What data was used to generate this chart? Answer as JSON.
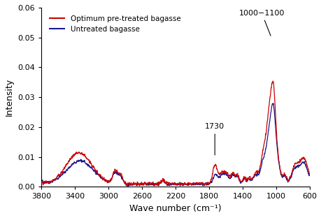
{
  "xlabel": "Wave number (cm⁻¹)",
  "ylabel": "Intensity",
  "xlim": [
    3800,
    600
  ],
  "ylim": [
    0,
    0.06
  ],
  "yticks": [
    0,
    0.01,
    0.02,
    0.03,
    0.04,
    0.05,
    0.06
  ],
  "xticks": [
    3800,
    3400,
    3000,
    2600,
    2200,
    1800,
    1400,
    1000,
    600
  ],
  "legend": [
    {
      "label": "Optimum pre-treated bagasse",
      "color": "#cc0000"
    },
    {
      "label": "Untreated bagasse",
      "color": "#1a1a8c"
    }
  ],
  "annotation_1730": {
    "label": "1730"
  },
  "annotation_1050": {
    "label": "1000−1100"
  },
  "background_color": "#ffffff"
}
